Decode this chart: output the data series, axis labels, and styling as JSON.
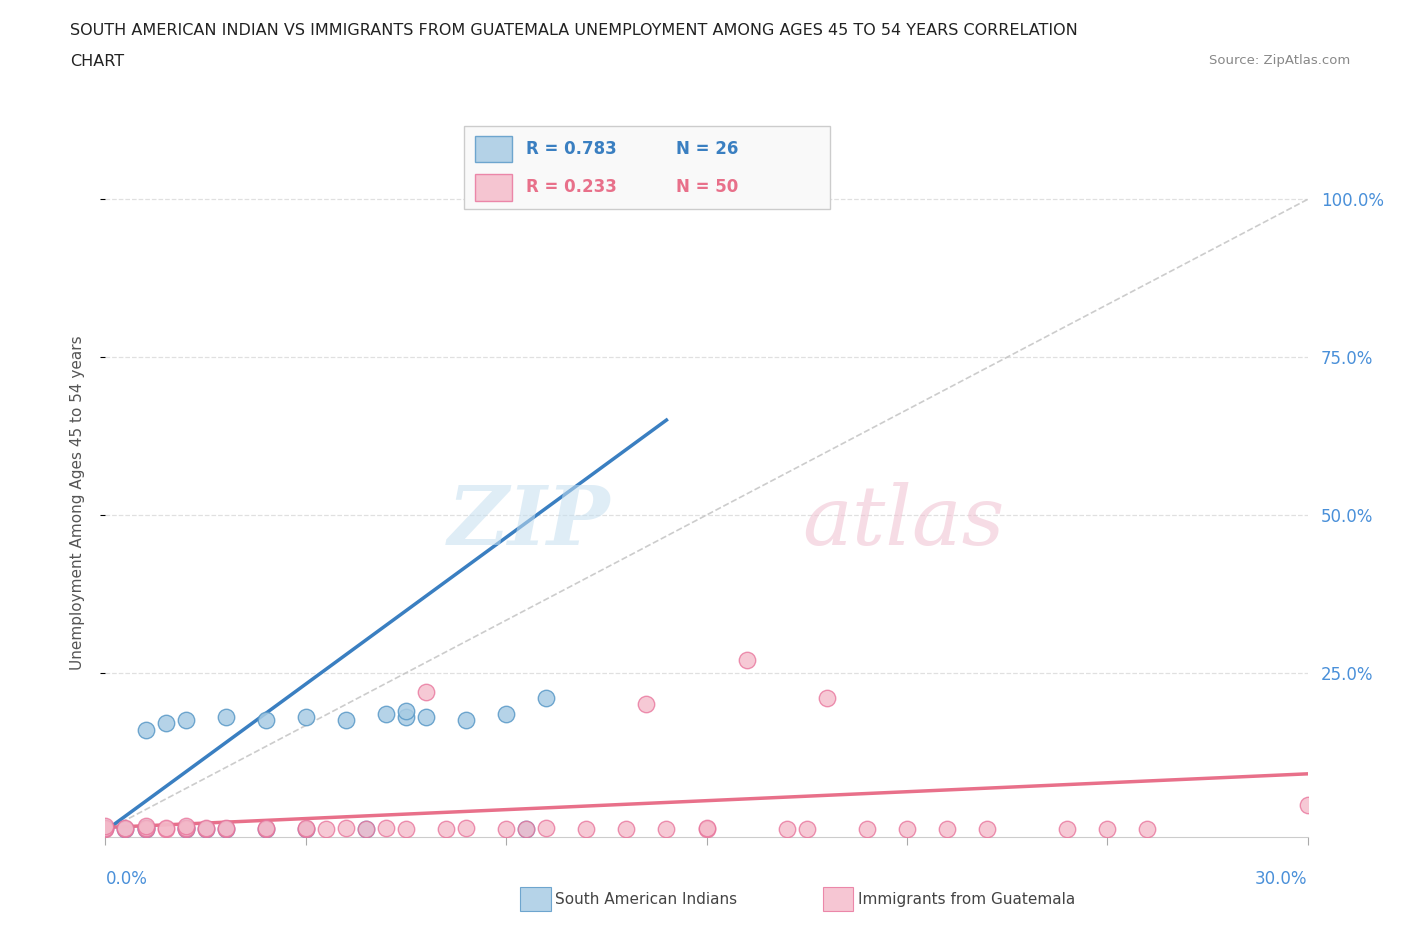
{
  "title_line1": "SOUTH AMERICAN INDIAN VS IMMIGRANTS FROM GUATEMALA UNEMPLOYMENT AMONG AGES 45 TO 54 YEARS CORRELATION",
  "title_line2": "CHART",
  "source": "Source: ZipAtlas.com",
  "ylabel": "Unemployment Among Ages 45 to 54 years",
  "xlim": [
    0.0,
    0.3
  ],
  "ylim": [
    -0.01,
    1.05
  ],
  "xtick_vals": [
    0.0,
    0.05,
    0.1,
    0.15,
    0.2,
    0.25,
    0.3
  ],
  "ytick_vals": [
    0.25,
    0.5,
    0.75,
    1.0
  ],
  "ytick_right_labels": [
    "25.0%",
    "50.0%",
    "75.0%",
    "100.0%"
  ],
  "legend_r1": "R = 0.783",
  "legend_n1": "N = 26",
  "legend_r2": "R = 0.233",
  "legend_n2": "N = 50",
  "color_blue": "#a8cce4",
  "color_pink": "#f4b8c8",
  "color_blue_edge": "#5b9ac8",
  "color_pink_edge": "#e87099",
  "color_line_blue": "#3a7fc1",
  "color_line_pink": "#e8708a",
  "color_diag": "#c0c0c0",
  "background": "#ffffff",
  "blue_scatter_x": [
    0.0,
    0.005,
    0.01,
    0.01,
    0.01,
    0.015,
    0.02,
    0.02,
    0.02,
    0.025,
    0.03,
    0.03,
    0.04,
    0.04,
    0.05,
    0.05,
    0.06,
    0.065,
    0.07,
    0.075,
    0.075,
    0.08,
    0.09,
    0.1,
    0.105,
    0.11
  ],
  "blue_scatter_y": [
    0.005,
    0.003,
    0.003,
    0.005,
    0.16,
    0.17,
    0.003,
    0.005,
    0.175,
    0.003,
    0.003,
    0.18,
    0.003,
    0.175,
    0.003,
    0.18,
    0.175,
    0.003,
    0.185,
    0.18,
    0.19,
    0.18,
    0.175,
    0.185,
    0.003,
    0.21
  ],
  "pink_scatter_x": [
    0.0,
    0.0,
    0.0,
    0.005,
    0.005,
    0.01,
    0.01,
    0.01,
    0.015,
    0.015,
    0.02,
    0.02,
    0.02,
    0.025,
    0.025,
    0.03,
    0.03,
    0.04,
    0.04,
    0.05,
    0.05,
    0.055,
    0.06,
    0.065,
    0.07,
    0.075,
    0.08,
    0.085,
    0.09,
    0.1,
    0.105,
    0.11,
    0.12,
    0.13,
    0.135,
    0.14,
    0.15,
    0.15,
    0.16,
    0.17,
    0.175,
    0.18,
    0.19,
    0.2,
    0.21,
    0.22,
    0.24,
    0.25,
    0.26,
    0.3
  ],
  "pink_scatter_y": [
    0.003,
    0.005,
    0.007,
    0.003,
    0.005,
    0.003,
    0.005,
    0.008,
    0.003,
    0.005,
    0.003,
    0.005,
    0.007,
    0.003,
    0.005,
    0.003,
    0.005,
    0.003,
    0.005,
    0.003,
    0.005,
    0.003,
    0.005,
    0.003,
    0.005,
    0.003,
    0.22,
    0.003,
    0.005,
    0.003,
    0.003,
    0.005,
    0.003,
    0.003,
    0.2,
    0.003,
    0.003,
    0.005,
    0.27,
    0.003,
    0.003,
    0.21,
    0.003,
    0.003,
    0.003,
    0.003,
    0.003,
    0.003,
    0.003,
    0.04
  ],
  "blue_line_x": [
    0.0,
    0.14
  ],
  "blue_line_y": [
    0.0,
    0.65
  ],
  "pink_line_x": [
    0.0,
    0.3
  ],
  "pink_line_y": [
    0.005,
    0.09
  ],
  "diag_line_x": [
    0.0,
    0.305
  ],
  "diag_line_y": [
    0.0,
    1.016
  ]
}
